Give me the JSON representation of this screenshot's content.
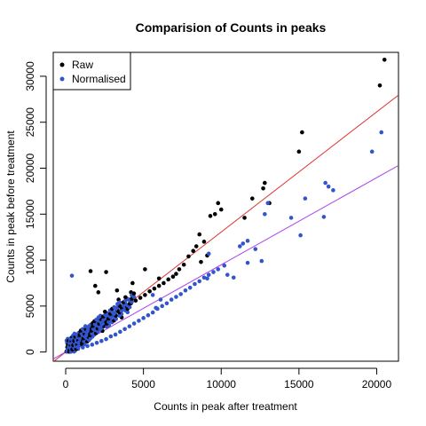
{
  "chart_data": {
    "type": "scatter",
    "title": "Comparision of Counts in peaks",
    "xlabel": "Counts in peak after treatment",
    "ylabel": "Counts in peak before treatment",
    "xlim": [
      -800,
      21400
    ],
    "ylim": [
      -1000,
      32600
    ],
    "x_ticks": [
      0,
      5000,
      10000,
      15000,
      20000
    ],
    "x_tick_labels": [
      "0",
      "5000",
      "10000",
      "15000",
      "20000"
    ],
    "y_ticks": [
      0,
      5000,
      10000,
      15000,
      20000,
      25000,
      30000
    ],
    "y_tick_labels": [
      "0",
      "5000",
      "10000",
      "15000",
      "20000",
      "25000",
      "30000"
    ],
    "grid": false,
    "legend_position": "top-left",
    "series": [
      {
        "name": "Raw",
        "color": "#000000",
        "x": [
          20500,
          20200,
          15200,
          15000,
          12800,
          12700,
          12000,
          13100,
          11500,
          9800,
          10000,
          9600,
          9300,
          9100,
          8900,
          8600,
          8400,
          8700,
          8200,
          7900,
          7600,
          7300,
          7100,
          6900,
          6600,
          6300,
          6000,
          5700,
          5400,
          5100,
          4800,
          4500,
          4200,
          3900,
          3600,
          3300,
          3000,
          2800,
          2600,
          2400,
          2200,
          2000,
          1800,
          1600,
          1400,
          1200,
          1000,
          800,
          600,
          500,
          400,
          300,
          1600,
          2600,
          1900,
          3300,
          6000,
          4200,
          3400,
          2100,
          5100,
          4300
        ],
        "y": [
          31800,
          29000,
          23900,
          21800,
          18400,
          17800,
          16700,
          16200,
          14600,
          16200,
          15500,
          15000,
          14800,
          10500,
          12000,
          12800,
          11500,
          9800,
          11000,
          10400,
          9500,
          9000,
          8500,
          8200,
          7900,
          7500,
          7200,
          6900,
          6600,
          6200,
          5900,
          5600,
          5300,
          5000,
          4700,
          4400,
          4100,
          3800,
          3500,
          3200,
          2900,
          2600,
          2300,
          2000,
          1700,
          1400,
          1100,
          850,
          600,
          450,
          300,
          150,
          8800,
          8700,
          7200,
          6700,
          8000,
          6500,
          5700,
          6500,
          9000,
          7500
        ]
      },
      {
        "name": "Normalised",
        "color": "#3355cc",
        "x": [
          20300,
          19700,
          17200,
          16900,
          16700,
          16600,
          15400,
          15100,
          14500,
          13000,
          12800,
          12200,
          11700,
          11400,
          11200,
          10800,
          10400,
          10200,
          9800,
          9500,
          9200,
          8900,
          8600,
          8300,
          8000,
          7700,
          7400,
          7100,
          6800,
          6500,
          6200,
          5900,
          5600,
          5300,
          5000,
          4700,
          4400,
          4100,
          3800,
          3500,
          3200,
          2900,
          2600,
          2300,
          2000,
          1700,
          1400,
          1100,
          800,
          600,
          400,
          250,
          400,
          12600,
          11700,
          9200,
          9100,
          6100,
          5600,
          5800
        ],
        "y": [
          23900,
          21800,
          17600,
          18000,
          18400,
          14700,
          16700,
          12700,
          14600,
          16200,
          15000,
          11200,
          12100,
          11800,
          11500,
          8100,
          8400,
          9400,
          9000,
          8700,
          8400,
          8100,
          7700,
          7400,
          7000,
          6700,
          6300,
          6000,
          5700,
          5300,
          5000,
          4700,
          4300,
          4000,
          3700,
          3400,
          3100,
          2800,
          2500,
          2200,
          1900,
          1700,
          1400,
          1200,
          1000,
          800,
          650,
          500,
          350,
          250,
          150,
          80,
          8300,
          9900,
          9700,
          10700,
          8000,
          5700,
          6200,
          4800
        ]
      }
    ],
    "lines": [
      {
        "name": "raw-fit",
        "color": "#dd3333",
        "x": [
          -800,
          21400
        ],
        "y": [
          -1050,
          27950
        ]
      },
      {
        "name": "normalised-fit",
        "color": "#aa44ee",
        "x": [
          -800,
          21400
        ],
        "y": [
          -750,
          20300
        ]
      }
    ]
  }
}
